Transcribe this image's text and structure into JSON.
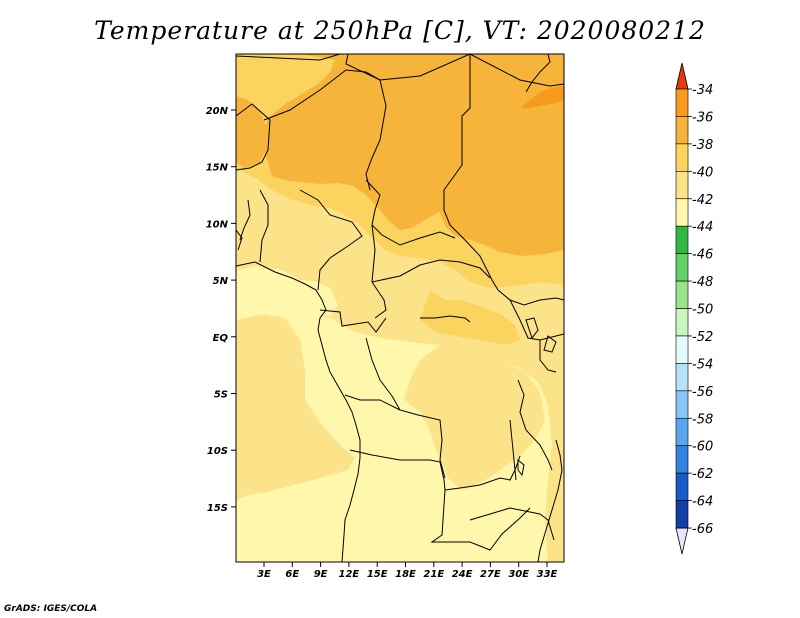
{
  "title": "Temperature at 250hPa [C], VT: 2020080212",
  "credit": "GrADS: IGES/COLA",
  "map": {
    "lon_ticks": [
      "3E",
      "6E",
      "9E",
      "12E",
      "15E",
      "18E",
      "21E",
      "24E",
      "27E",
      "30E",
      "33E"
    ],
    "lat_ticks": [
      "20N",
      "15N",
      "10N",
      "5N",
      "EQ",
      "5S",
      "10S",
      "15S"
    ],
    "colors": {
      "band_minus40_minus38": "#fbd35f",
      "band_minus38_minus36": "#f7b43b",
      "band_minus36_minus34": "#f69b1e",
      "band_minus42_minus40": "#fce38a",
      "band_minus44_minus42": "#fff7ac"
    }
  },
  "colorbar": {
    "labels": [
      "-34",
      "-36",
      "-38",
      "-40",
      "-42",
      "-44",
      "-46",
      "-48",
      "-50",
      "-52",
      "-54",
      "-56",
      "-58",
      "-60",
      "-62",
      "-64",
      "-66"
    ],
    "colors": [
      "#e65a0c",
      "#f69b1e",
      "#f7b43b",
      "#fbd35f",
      "#fce38a",
      "#fff7ac",
      "#30b843",
      "#64d267",
      "#9ae48e",
      "#c8f5c0",
      "#e4fafe",
      "#b4e2fb",
      "#89c6f7",
      "#5aa6ec",
      "#3282de",
      "#1a5bc7",
      "#1440a6",
      "#0a1a78"
    ],
    "top_triangle_color": "#e8380c",
    "bottom_triangle_color": "#e6e4fa"
  }
}
